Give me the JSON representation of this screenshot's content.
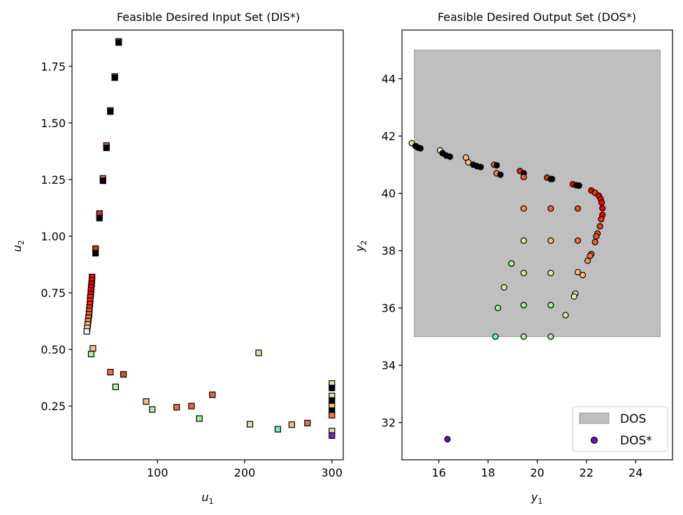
{
  "chart_data": [
    {
      "type": "scatter",
      "title": "Feasible Desired Input Set (DIS*)",
      "xlabel": "u",
      "xlabel_sub": "1",
      "ylabel": "u",
      "ylabel_sub": "2",
      "xlim": [
        2,
        313
      ],
      "ylim": [
        0.013,
        1.91
      ],
      "xticks": [
        100,
        200,
        300
      ],
      "yticks": [
        0.25,
        0.5,
        0.75,
        1.0,
        1.25,
        1.5,
        1.75
      ],
      "ytick_labels": [
        "0.25",
        "0.50",
        "0.75",
        "1.00",
        "1.25",
        "1.50",
        "1.75"
      ],
      "marker": "square",
      "series": [
        {
          "points": [
            [
              55.5,
              1.86,
              "#e8e8a0"
            ],
            [
              55.5,
              1.855,
              "#000000"
            ],
            [
              51.0,
              1.705,
              "#e8e8a0"
            ],
            [
              51.0,
              1.7,
              "#000000"
            ],
            [
              46.0,
              1.555,
              "#fdbf6f"
            ],
            [
              46.0,
              1.55,
              "#000000"
            ],
            [
              41.5,
              1.4,
              "#f47040"
            ],
            [
              41.5,
              1.39,
              "#000000"
            ],
            [
              37.5,
              1.255,
              "#f47040"
            ],
            [
              37.5,
              1.245,
              "#000000"
            ],
            [
              33.5,
              1.1,
              "#e62a1a"
            ],
            [
              33.5,
              1.08,
              "#000000"
            ],
            [
              29.0,
              0.945,
              "#e62a1a"
            ],
            [
              29.0,
              0.925,
              "#000000"
            ],
            [
              25.0,
              0.82,
              "#ff0000"
            ],
            [
              24.8,
              0.805,
              "#ff0000"
            ],
            [
              24.5,
              0.79,
              "#ff0000"
            ],
            [
              24.0,
              0.775,
              "#ff0000"
            ],
            [
              23.8,
              0.76,
              "#ff0000"
            ],
            [
              23.5,
              0.745,
              "#ff0000"
            ],
            [
              23.0,
              0.73,
              "#f03010"
            ],
            [
              22.8,
              0.715,
              "#f03010"
            ],
            [
              22.5,
              0.7,
              "#f03010"
            ],
            [
              22.0,
              0.685,
              "#f04020"
            ],
            [
              21.8,
              0.67,
              "#f05030"
            ],
            [
              21.5,
              0.655,
              "#f06040"
            ],
            [
              21.0,
              0.64,
              "#f47040"
            ],
            [
              20.5,
              0.625,
              "#f8904f"
            ],
            [
              20.0,
              0.61,
              "#fdbf6f"
            ],
            [
              19.5,
              0.595,
              "#ffe09a"
            ],
            [
              19.0,
              0.58,
              "#f8f8f8"
            ],
            [
              26.0,
              0.505,
              "#fdbf6f"
            ],
            [
              24.0,
              0.48,
              "#a8f0a0"
            ],
            [
              46.0,
              0.4,
              "#f47040"
            ],
            [
              61.0,
              0.39,
              "#e05030"
            ],
            [
              52.0,
              0.335,
              "#c8f0a0"
            ],
            [
              216.0,
              0.485,
              "#c8f0a0"
            ],
            [
              87.0,
              0.27,
              "#fdbf6f"
            ],
            [
              94.0,
              0.235,
              "#a8f0a0"
            ],
            [
              122.0,
              0.245,
              "#f47040"
            ],
            [
              139.0,
              0.25,
              "#f06040"
            ],
            [
              148.0,
              0.195,
              "#a8f0a0"
            ],
            [
              163.0,
              0.3,
              "#f06040"
            ],
            [
              206.0,
              0.17,
              "#c8f0a0"
            ],
            [
              238.0,
              0.148,
              "#60f0d0"
            ],
            [
              254.0,
              0.168,
              "#fdbf6f"
            ],
            [
              272.0,
              0.175,
              "#f47040"
            ],
            [
              300.0,
              0.35,
              "#c8f0a0"
            ],
            [
              300.0,
              0.33,
              "#000000"
            ],
            [
              300.0,
              0.295,
              "#e8e8a0"
            ],
            [
              300.0,
              0.275,
              "#000000"
            ],
            [
              300.0,
              0.25,
              "#fdbf6f"
            ],
            [
              300.0,
              0.23,
              "#000000"
            ],
            [
              300.0,
              0.21,
              "#f47040"
            ],
            [
              300.0,
              0.14,
              "#c8f0a0"
            ],
            [
              300.0,
              0.12,
              "#7020e0"
            ]
          ]
        }
      ]
    },
    {
      "type": "scatter",
      "title": "Feasible Desired Output Set (DOS*)",
      "xlabel": "y",
      "xlabel_sub": "1",
      "ylabel": "y",
      "ylabel_sub": "2",
      "xlim": [
        14.5,
        25.5
      ],
      "ylim": [
        30.7,
        45.7
      ],
      "xticks": [
        16,
        18,
        20,
        22,
        24
      ],
      "yticks": [
        32,
        34,
        36,
        38,
        40,
        42,
        44
      ],
      "rectangle": {
        "x": [
          15,
          25
        ],
        "y": [
          35,
          45
        ],
        "color": "#bfbfbf"
      },
      "marker": "circle",
      "legend": {
        "position": "bottom-right",
        "entries": [
          "DOS",
          "DOS*"
        ]
      },
      "series": [
        {
          "name": "DOS",
          "type": "area",
          "color": "#bfbfbf"
        },
        {
          "name": "DOS*",
          "color": "#6a0dd6",
          "points": [
            [
              14.9,
              41.75,
              "#c8f0a0"
            ],
            [
              15.05,
              41.65,
              "#000000"
            ],
            [
              15.15,
              41.6,
              "#000000"
            ],
            [
              15.25,
              41.57,
              "#000000"
            ],
            [
              16.05,
              41.5,
              "#e8e8a0"
            ],
            [
              16.15,
              41.4,
              "#000000"
            ],
            [
              16.3,
              41.32,
              "#000000"
            ],
            [
              16.45,
              41.28,
              "#000000"
            ],
            [
              17.1,
              41.25,
              "#fdbf6f"
            ],
            [
              17.2,
              41.08,
              "#fdbf6f"
            ],
            [
              17.4,
              41.0,
              "#000000"
            ],
            [
              17.55,
              40.95,
              "#000000"
            ],
            [
              17.7,
              40.92,
              "#000000"
            ],
            [
              18.25,
              41.0,
              "#f47040"
            ],
            [
              18.35,
              40.98,
              "#000000"
            ],
            [
              18.35,
              40.7,
              "#f8904f"
            ],
            [
              18.5,
              40.65,
              "#000000"
            ],
            [
              19.3,
              40.78,
              "#e62a1a"
            ],
            [
              19.45,
              40.7,
              "#000000"
            ],
            [
              19.45,
              40.57,
              "#f06040"
            ],
            [
              20.4,
              40.55,
              "#e62a1a"
            ],
            [
              20.55,
              40.5,
              "#000000"
            ],
            [
              20.6,
              40.5,
              "#000000"
            ],
            [
              21.45,
              40.32,
              "#ff0000"
            ],
            [
              21.6,
              40.28,
              "#000000"
            ],
            [
              21.7,
              40.27,
              "#000000"
            ],
            [
              22.2,
              40.1,
              "#ff0000"
            ],
            [
              22.35,
              40.02,
              "#f03010"
            ],
            [
              22.5,
              39.92,
              "#ff0000"
            ],
            [
              22.58,
              39.8,
              "#ff0000"
            ],
            [
              22.62,
              39.68,
              "#ff0000"
            ],
            [
              22.65,
              39.48,
              "#ff0000"
            ],
            [
              22.65,
              39.25,
              "#ff0000"
            ],
            [
              22.6,
              39.1,
              "#f03010"
            ],
            [
              22.55,
              38.85,
              "#f04020"
            ],
            [
              22.45,
              38.6,
              "#f05030"
            ],
            [
              22.4,
              38.5,
              "#f05030"
            ],
            [
              22.35,
              38.3,
              "#f06040"
            ],
            [
              22.2,
              37.88,
              "#f47040"
            ],
            [
              22.15,
              37.82,
              "#f47040"
            ],
            [
              22.05,
              37.65,
              "#f8904f"
            ],
            [
              21.85,
              37.15,
              "#fdbf6f"
            ],
            [
              21.65,
              37.25,
              "#fdbf6f"
            ],
            [
              21.55,
              36.5,
              "#c8f0a0"
            ],
            [
              21.5,
              36.4,
              "#e8e8a0"
            ],
            [
              19.45,
              39.47,
              "#f8904f"
            ],
            [
              20.55,
              39.47,
              "#f06040"
            ],
            [
              21.65,
              39.47,
              "#f05030"
            ],
            [
              19.45,
              38.35,
              "#e8e8a0"
            ],
            [
              20.55,
              38.35,
              "#fdbf6f"
            ],
            [
              21.65,
              38.35,
              "#f47040"
            ],
            [
              19.45,
              37.22,
              "#c8f0a0"
            ],
            [
              20.55,
              37.22,
              "#e8e8a0"
            ],
            [
              18.95,
              37.55,
              "#a8f0a0"
            ],
            [
              18.65,
              36.72,
              "#c8f0a0"
            ],
            [
              18.4,
              36.0,
              "#a8f0a0"
            ],
            [
              19.45,
              36.1,
              "#a8f0a0"
            ],
            [
              20.55,
              36.1,
              "#a8f0a0"
            ],
            [
              21.15,
              35.75,
              "#c8f0a0"
            ],
            [
              18.3,
              35.0,
              "#60f0d0"
            ],
            [
              19.45,
              35.0,
              "#a8f0a0"
            ],
            [
              20.55,
              35.0,
              "#a8f0a0"
            ],
            [
              16.35,
              31.42,
              "#6a0dd6"
            ]
          ]
        }
      ]
    }
  ]
}
